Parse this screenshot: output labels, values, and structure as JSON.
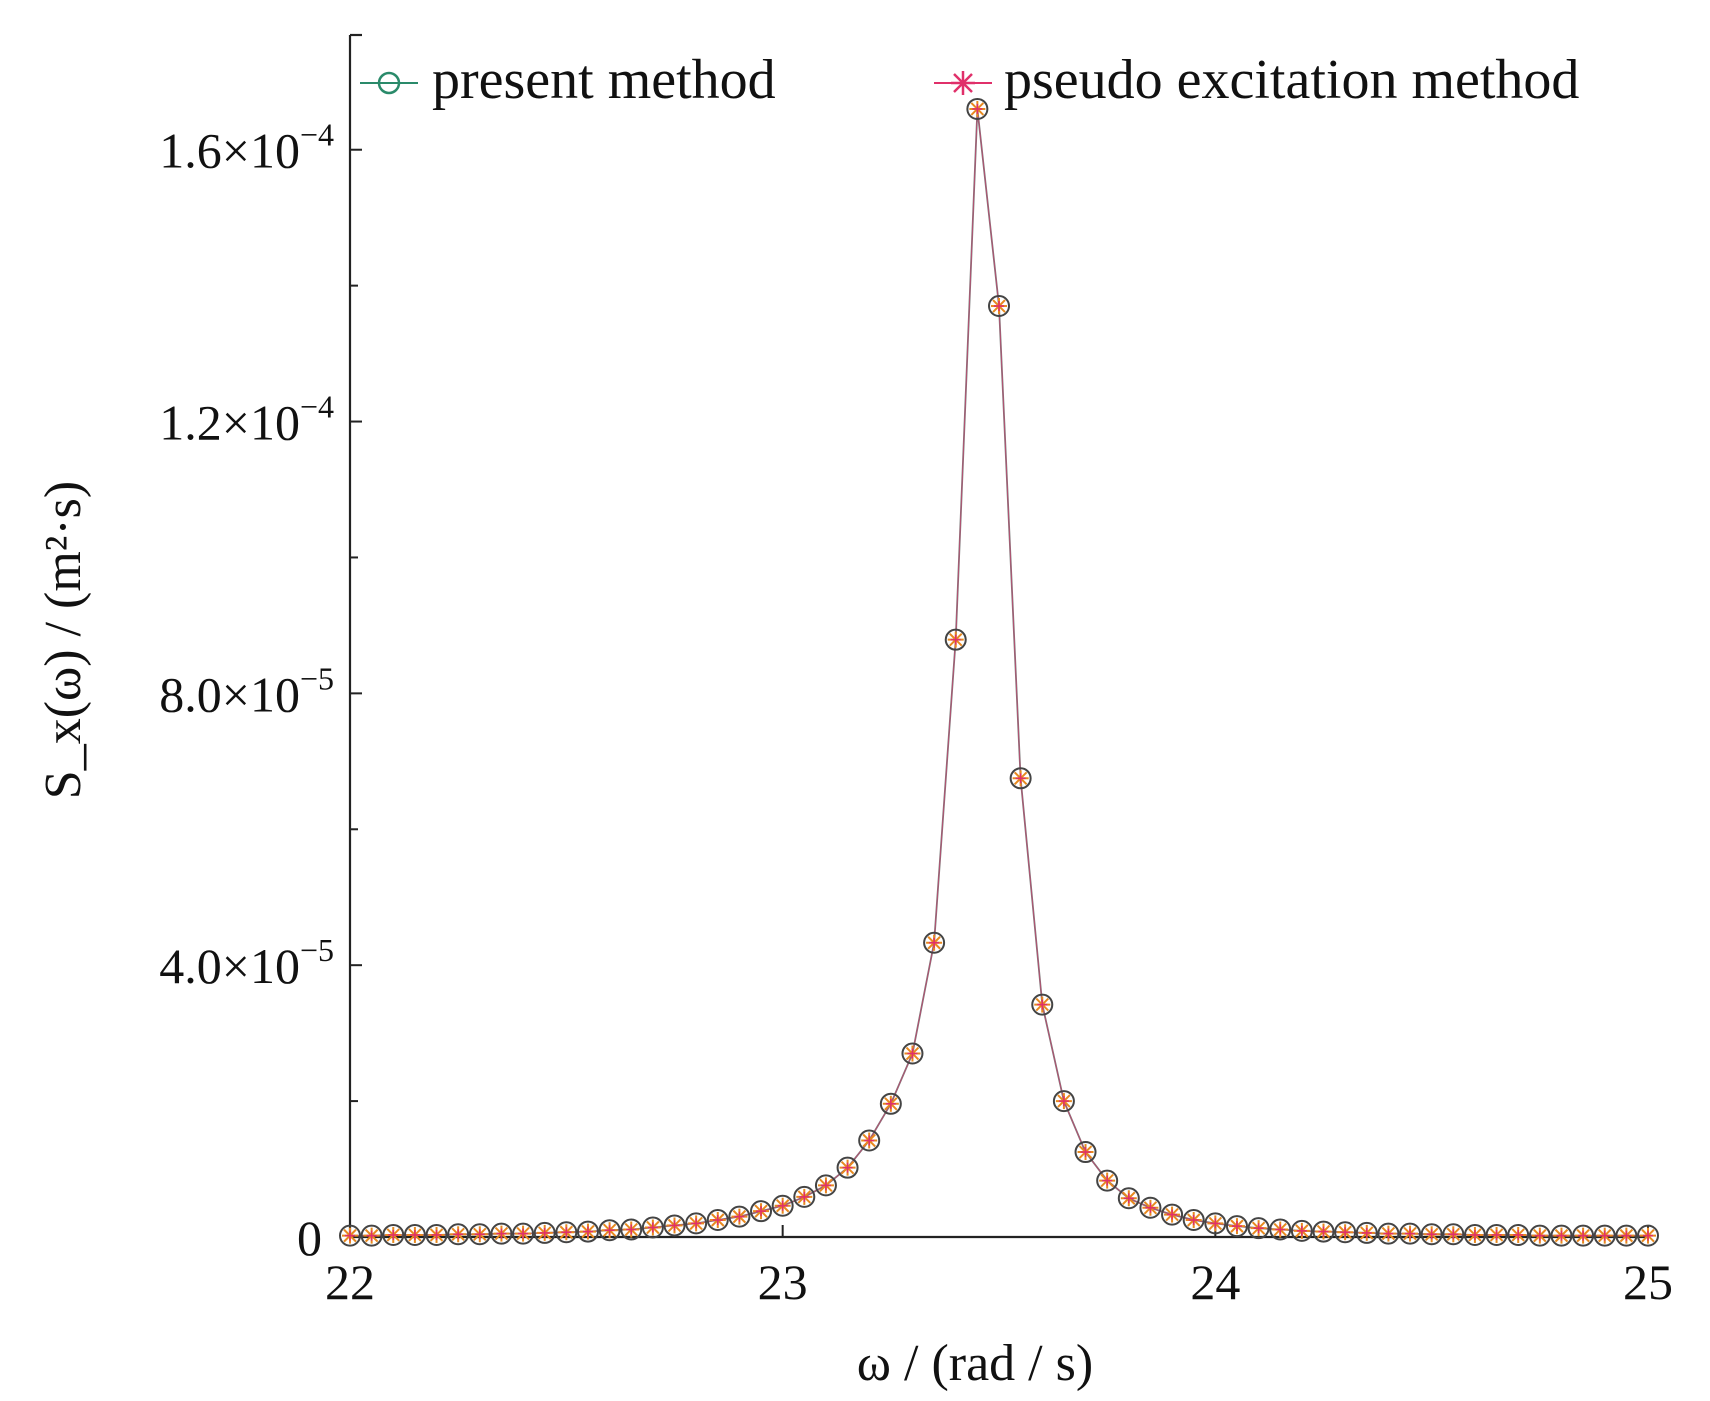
{
  "chart_data": {
    "type": "line",
    "xlabel": "ω / (rad / s)",
    "ylabel": "S_x(ω) / (m²·s)",
    "xlim": [
      22,
      25
    ],
    "ylim": [
      0,
      0.000176
    ],
    "x_ticks": [
      {
        "value": 22,
        "label": "22"
      },
      {
        "value": 23,
        "label": "23"
      },
      {
        "value": 24,
        "label": "24"
      },
      {
        "value": 25,
        "label": "25"
      }
    ],
    "y_ticks": [
      {
        "value": 0,
        "label": "0"
      },
      {
        "value": 4e-05,
        "label": "4.0×10",
        "exponent": "−5"
      },
      {
        "value": 8e-05,
        "label": "8.0×10",
        "exponent": "−5"
      },
      {
        "value": 0.00012,
        "label": "1.2×10",
        "exponent": "−4"
      },
      {
        "value": 0.00016,
        "label": "1.6×10",
        "exponent": "−4"
      }
    ],
    "legend": {
      "position": "top",
      "entries": [
        "present method",
        "pseudo excitation method"
      ]
    },
    "grid": false,
    "colors": {
      "line": "#7a7a7a",
      "circle": "#444444",
      "star_present": "#e8891e",
      "star_pseudo": "#e0306a",
      "legend_circle": "#2a8a6a"
    },
    "x": [
      22.0,
      22.05,
      22.1,
      22.15,
      22.2,
      22.25,
      22.3,
      22.35,
      22.4,
      22.45,
      22.5,
      22.55,
      22.6,
      22.65,
      22.7,
      22.75,
      22.8,
      22.85,
      22.9,
      22.95,
      23.0,
      23.05,
      23.1,
      23.15,
      23.2,
      23.25,
      23.3,
      23.35,
      23.4,
      23.45,
      23.5,
      23.55,
      23.6,
      23.65,
      23.7,
      23.75,
      23.8,
      23.85,
      23.9,
      23.95,
      24.0,
      24.05,
      24.1,
      24.15,
      24.2,
      24.25,
      24.3,
      24.35,
      24.4,
      24.45,
      24.5,
      24.55,
      24.6,
      24.65,
      24.7,
      24.75,
      24.8,
      24.85,
      24.9,
      24.95,
      25.0
    ],
    "series": [
      {
        "name": "present method",
        "values": [
          2e-07,
          2e-07,
          3e-07,
          3e-07,
          3e-07,
          4e-07,
          4e-07,
          5e-07,
          5e-07,
          6e-07,
          7e-07,
          8e-07,
          1e-06,
          1.1e-06,
          1.4e-06,
          1.7e-06,
          2e-06,
          2.5e-06,
          3e-06,
          3.8e-06,
          4.6e-06,
          5.9e-06,
          7.6e-06,
          1.02e-05,
          1.42e-05,
          1.96e-05,
          2.7e-05,
          4.33e-05,
          8.79e-05,
          0.000166,
          0.000137,
          6.75e-05,
          3.42e-05,
          2e-05,
          1.25e-05,
          8.3e-06,
          5.7e-06,
          4.3e-06,
          3.3e-06,
          2.5e-06,
          2e-06,
          1.6e-06,
          1.3e-06,
          1.1e-06,
          9e-07,
          8e-07,
          7e-07,
          6e-07,
          5e-07,
          5e-07,
          4e-07,
          4e-07,
          3e-07,
          3e-07,
          3e-07,
          2e-07,
          2e-07,
          2e-07,
          2e-07,
          2e-07,
          2e-07
        ]
      },
      {
        "name": "pseudo excitation method",
        "values": [
          2e-07,
          2e-07,
          3e-07,
          3e-07,
          3e-07,
          4e-07,
          4e-07,
          5e-07,
          5e-07,
          6e-07,
          7e-07,
          8e-07,
          1e-06,
          1.1e-06,
          1.4e-06,
          1.7e-06,
          2e-06,
          2.5e-06,
          3e-06,
          3.8e-06,
          4.6e-06,
          5.9e-06,
          7.6e-06,
          1.02e-05,
          1.42e-05,
          1.96e-05,
          2.7e-05,
          4.33e-05,
          8.79e-05,
          0.000166,
          0.000137,
          6.75e-05,
          3.42e-05,
          2e-05,
          1.25e-05,
          8.3e-06,
          5.7e-06,
          4.3e-06,
          3.3e-06,
          2.5e-06,
          2e-06,
          1.6e-06,
          1.3e-06,
          1.1e-06,
          9e-07,
          8e-07,
          7e-07,
          6e-07,
          5e-07,
          5e-07,
          4e-07,
          4e-07,
          3e-07,
          3e-07,
          3e-07,
          2e-07,
          2e-07,
          2e-07,
          2e-07,
          2e-07,
          2e-07
        ]
      }
    ]
  }
}
